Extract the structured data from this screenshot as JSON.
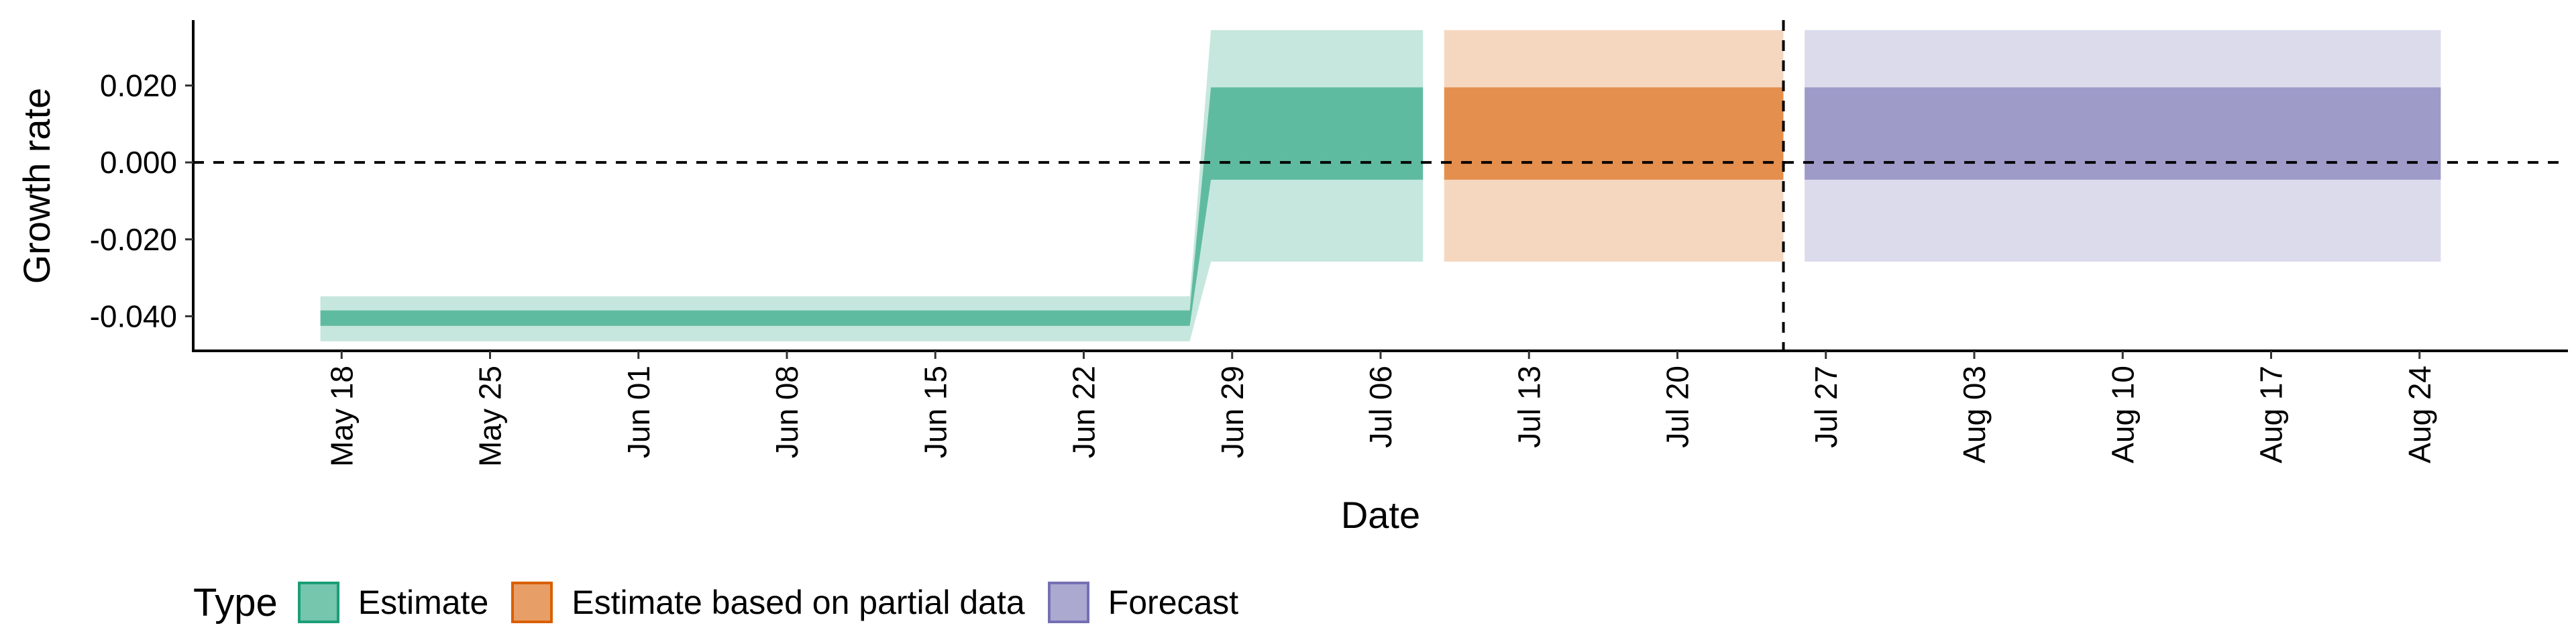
{
  "chart_data": {
    "type": "area",
    "xlabel": "Date",
    "ylabel": "Growth rate",
    "xlim": [
      "2020-05-11",
      "2020-08-31"
    ],
    "ylim": [
      -0.049,
      0.037
    ],
    "x_ticks": [
      "2020-05-18",
      "2020-05-25",
      "2020-06-01",
      "2020-06-08",
      "2020-06-15",
      "2020-06-22",
      "2020-06-29",
      "2020-07-06",
      "2020-07-13",
      "2020-07-20",
      "2020-07-27",
      "2020-08-03",
      "2020-08-10",
      "2020-08-17",
      "2020-08-24"
    ],
    "x_tick_labels": [
      "May 18",
      "May 25",
      "Jun 01",
      "Jun 08",
      "Jun 15",
      "Jun 22",
      "Jun 29",
      "Jul 06",
      "Jul 13",
      "Jul 20",
      "Jul 27",
      "Aug 03",
      "Aug 10",
      "Aug 17",
      "Aug 24"
    ],
    "y_ticks": [
      -0.04,
      -0.02,
      0.0,
      0.02
    ],
    "y_tick_labels": [
      "-0.040",
      "-0.020",
      "0.000",
      "0.020"
    ],
    "reference_lines": {
      "y": 0.0,
      "x": "2020-07-25"
    },
    "legend": {
      "title": "Type",
      "position": "bottom-left"
    },
    "series": [
      {
        "name": "Estimate",
        "color": "#1b9e77",
        "points": [
          {
            "date": "2020-05-17",
            "outer": [
              -0.0465,
              -0.0348
            ],
            "inner": [
              -0.0425,
              -0.0385
            ]
          },
          {
            "date": "2020-06-27",
            "outer": [
              -0.0465,
              -0.0348
            ],
            "inner": [
              -0.0425,
              -0.0385
            ]
          },
          {
            "date": "2020-06-28",
            "outer": [
              -0.0258,
              0.0344
            ],
            "inner": [
              -0.0045,
              0.0195
            ]
          },
          {
            "date": "2020-07-08",
            "outer": [
              -0.0258,
              0.0344
            ],
            "inner": [
              -0.0045,
              0.0195
            ]
          }
        ]
      },
      {
        "name": "Estimate based on partial data",
        "color": "#d95f02",
        "points": [
          {
            "date": "2020-07-09",
            "outer": [
              -0.0258,
              0.0344
            ],
            "inner": [
              -0.0045,
              0.0195
            ]
          },
          {
            "date": "2020-07-25",
            "outer": [
              -0.0258,
              0.0344
            ],
            "inner": [
              -0.0045,
              0.0195
            ]
          }
        ]
      },
      {
        "name": "Forecast",
        "color": "#7570b3",
        "points": [
          {
            "date": "2020-07-26",
            "outer": [
              -0.0258,
              0.0344
            ],
            "inner": [
              -0.0045,
              0.0195
            ]
          },
          {
            "date": "2020-08-25",
            "outer": [
              -0.0258,
              0.0344
            ],
            "inner": [
              -0.0045,
              0.0195
            ]
          }
        ]
      }
    ]
  }
}
